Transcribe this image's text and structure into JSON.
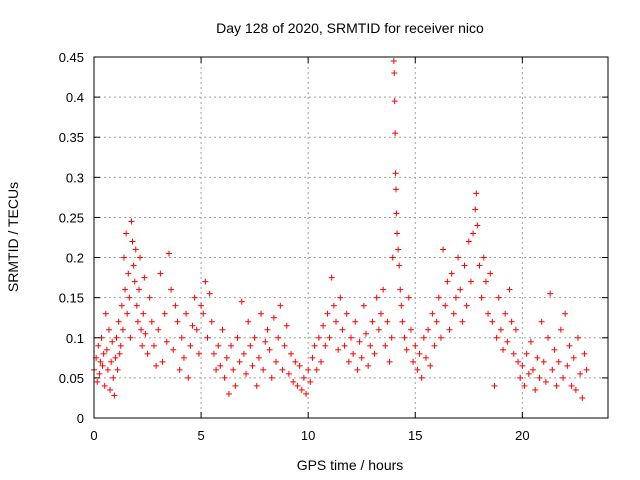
{
  "chart_data": {
    "type": "scatter",
    "title": "Day 128 of 2020, SRMTID for receiver nico",
    "xlabel": "GPS time / hours",
    "ylabel": "SRMTID / TECUs",
    "xlim": [
      0,
      24
    ],
    "ylim": [
      0,
      0.45
    ],
    "xticks": [
      0,
      5,
      10,
      15,
      20
    ],
    "xtick_labels": [
      "0",
      "5",
      "10",
      "15",
      "20"
    ],
    "yticks": [
      0,
      0.05,
      0.1,
      0.15,
      0.2,
      0.25,
      0.3,
      0.35,
      0.4,
      0.45
    ],
    "ytick_labels": [
      "0",
      "0.05",
      "0.1",
      "0.15",
      "0.2",
      "0.25",
      "0.3",
      "0.35",
      "0.4",
      "0.45"
    ],
    "grid": true,
    "marker": "plus",
    "color": "#ff0000",
    "series": [
      {
        "name": "SRMTID",
        "points": [
          [
            0.0,
            0.06
          ],
          [
            0.1,
            0.075
          ],
          [
            0.15,
            0.045
          ],
          [
            0.2,
            0.09
          ],
          [
            0.25,
            0.055
          ],
          [
            0.3,
            0.07
          ],
          [
            0.35,
            0.1
          ],
          [
            0.4,
            0.065
          ],
          [
            0.45,
            0.08
          ],
          [
            0.5,
            0.04
          ],
          [
            0.55,
            0.13
          ],
          [
            0.6,
            0.085
          ],
          [
            0.65,
            0.06
          ],
          [
            0.7,
            0.11
          ],
          [
            0.75,
            0.035
          ],
          [
            0.8,
            0.07
          ],
          [
            0.85,
            0.095
          ],
          [
            0.9,
            0.05
          ],
          [
            0.95,
            0.028
          ],
          [
            1.0,
            0.075
          ],
          [
            1.05,
            0.1
          ],
          [
            1.1,
            0.06
          ],
          [
            1.15,
            0.12
          ],
          [
            1.2,
            0.08
          ],
          [
            1.25,
            0.09
          ],
          [
            1.3,
            0.14
          ],
          [
            1.35,
            0.11
          ],
          [
            1.4,
            0.2
          ],
          [
            1.45,
            0.16
          ],
          [
            1.5,
            0.23
          ],
          [
            1.55,
            0.13
          ],
          [
            1.6,
            0.18
          ],
          [
            1.65,
            0.15
          ],
          [
            1.7,
            0.1
          ],
          [
            1.75,
            0.245
          ],
          [
            1.8,
            0.22
          ],
          [
            1.85,
            0.19
          ],
          [
            1.9,
            0.17
          ],
          [
            1.95,
            0.21
          ],
          [
            2.0,
            0.14
          ],
          [
            2.05,
            0.12
          ],
          [
            2.1,
            0.16
          ],
          [
            2.15,
            0.2
          ],
          [
            2.2,
            0.11
          ],
          [
            2.25,
            0.09
          ],
          [
            2.3,
            0.13
          ],
          [
            2.35,
            0.175
          ],
          [
            2.4,
            0.105
          ],
          [
            2.5,
            0.08
          ],
          [
            2.6,
            0.15
          ],
          [
            2.7,
            0.12
          ],
          [
            2.8,
            0.09
          ],
          [
            2.9,
            0.065
          ],
          [
            3.0,
            0.11
          ],
          [
            3.1,
            0.18
          ],
          [
            3.2,
            0.07
          ],
          [
            3.3,
            0.13
          ],
          [
            3.4,
            0.095
          ],
          [
            3.5,
            0.205
          ],
          [
            3.6,
            0.16
          ],
          [
            3.7,
            0.085
          ],
          [
            3.8,
            0.14
          ],
          [
            3.9,
            0.12
          ],
          [
            4.0,
            0.06
          ],
          [
            4.1,
            0.1
          ],
          [
            4.2,
            0.075
          ],
          [
            4.3,
            0.13
          ],
          [
            4.4,
            0.05
          ],
          [
            4.5,
            0.09
          ],
          [
            4.6,
            0.115
          ],
          [
            4.7,
            0.15
          ],
          [
            4.8,
            0.11
          ],
          [
            4.9,
            0.08
          ],
          [
            5.0,
            0.14
          ],
          [
            5.1,
            0.13
          ],
          [
            5.2,
            0.17
          ],
          [
            5.3,
            0.1
          ],
          [
            5.4,
            0.155
          ],
          [
            5.5,
            0.12
          ],
          [
            5.6,
            0.08
          ],
          [
            5.7,
            0.06
          ],
          [
            5.8,
            0.09
          ],
          [
            5.9,
            0.065
          ],
          [
            6.0,
            0.11
          ],
          [
            6.1,
            0.05
          ],
          [
            6.2,
            0.075
          ],
          [
            6.3,
            0.03
          ],
          [
            6.4,
            0.09
          ],
          [
            6.5,
            0.06
          ],
          [
            6.6,
            0.04
          ],
          [
            6.7,
            0.1
          ],
          [
            6.8,
            0.07
          ],
          [
            6.9,
            0.145
          ],
          [
            7.0,
            0.08
          ],
          [
            7.1,
            0.055
          ],
          [
            7.2,
            0.12
          ],
          [
            7.3,
            0.09
          ],
          [
            7.4,
            0.065
          ],
          [
            7.5,
            0.1
          ],
          [
            7.6,
            0.04
          ],
          [
            7.7,
            0.075
          ],
          [
            7.8,
            0.13
          ],
          [
            7.9,
            0.06
          ],
          [
            8.0,
            0.095
          ],
          [
            8.1,
            0.11
          ],
          [
            8.2,
            0.085
          ],
          [
            8.3,
            0.05
          ],
          [
            8.4,
            0.125
          ],
          [
            8.5,
            0.07
          ],
          [
            8.6,
            0.1
          ],
          [
            8.7,
            0.14
          ],
          [
            8.8,
            0.06
          ],
          [
            8.9,
            0.09
          ],
          [
            9.0,
            0.115
          ],
          [
            9.1,
            0.055
          ],
          [
            9.2,
            0.08
          ],
          [
            9.3,
            0.045
          ],
          [
            9.4,
            0.07
          ],
          [
            9.5,
            0.04
          ],
          [
            9.6,
            0.065
          ],
          [
            9.7,
            0.035
          ],
          [
            9.8,
            0.05
          ],
          [
            9.9,
            0.03
          ],
          [
            10.0,
            0.06
          ],
          [
            10.1,
            0.045
          ],
          [
            10.2,
            0.075
          ],
          [
            10.3,
            0.09
          ],
          [
            10.4,
            0.06
          ],
          [
            10.5,
            0.1
          ],
          [
            10.6,
            0.07
          ],
          [
            10.7,
            0.115
          ],
          [
            10.8,
            0.09
          ],
          [
            10.9,
            0.13
          ],
          [
            11.0,
            0.1
          ],
          [
            11.1,
            0.175
          ],
          [
            11.2,
            0.14
          ],
          [
            11.3,
            0.12
          ],
          [
            11.4,
            0.085
          ],
          [
            11.5,
            0.15
          ],
          [
            11.6,
            0.11
          ],
          [
            11.7,
            0.09
          ],
          [
            11.8,
            0.13
          ],
          [
            11.9,
            0.07
          ],
          [
            12.0,
            0.1
          ],
          [
            12.1,
            0.08
          ],
          [
            12.2,
            0.12
          ],
          [
            12.3,
            0.06
          ],
          [
            12.4,
            0.095
          ],
          [
            12.5,
            0.075
          ],
          [
            12.6,
            0.14
          ],
          [
            12.7,
            0.105
          ],
          [
            12.8,
            0.065
          ],
          [
            12.9,
            0.09
          ],
          [
            13.0,
            0.12
          ],
          [
            13.1,
            0.08
          ],
          [
            13.2,
            0.15
          ],
          [
            13.3,
            0.11
          ],
          [
            13.4,
            0.13
          ],
          [
            13.5,
            0.16
          ],
          [
            13.6,
            0.09
          ],
          [
            13.7,
            0.12
          ],
          [
            13.8,
            0.07
          ],
          [
            13.9,
            0.1
          ],
          [
            13.95,
            0.2
          ],
          [
            14.0,
            0.445
          ],
          [
            14.02,
            0.43
          ],
          [
            14.04,
            0.395
          ],
          [
            14.06,
            0.355
          ],
          [
            14.08,
            0.305
          ],
          [
            14.1,
            0.285
          ],
          [
            14.12,
            0.255
          ],
          [
            14.15,
            0.23
          ],
          [
            14.2,
            0.21
          ],
          [
            14.25,
            0.19
          ],
          [
            14.3,
            0.16
          ],
          [
            14.35,
            0.14
          ],
          [
            14.4,
            0.12
          ],
          [
            14.5,
            0.1
          ],
          [
            14.6,
            0.085
          ],
          [
            14.7,
            0.15
          ],
          [
            14.8,
            0.11
          ],
          [
            14.9,
            0.07
          ],
          [
            15.0,
            0.09
          ],
          [
            15.1,
            0.06
          ],
          [
            15.2,
            0.08
          ],
          [
            15.3,
            0.05
          ],
          [
            15.4,
            0.1
          ],
          [
            15.5,
            0.075
          ],
          [
            15.6,
            0.11
          ],
          [
            15.7,
            0.065
          ],
          [
            15.8,
            0.13
          ],
          [
            15.9,
            0.09
          ],
          [
            16.0,
            0.12
          ],
          [
            16.1,
            0.15
          ],
          [
            16.2,
            0.1
          ],
          [
            16.3,
            0.21
          ],
          [
            16.4,
            0.14
          ],
          [
            16.5,
            0.17
          ],
          [
            16.6,
            0.11
          ],
          [
            16.7,
            0.18
          ],
          [
            16.8,
            0.13
          ],
          [
            16.9,
            0.15
          ],
          [
            17.0,
            0.2
          ],
          [
            17.1,
            0.16
          ],
          [
            17.2,
            0.12
          ],
          [
            17.3,
            0.19
          ],
          [
            17.4,
            0.14
          ],
          [
            17.5,
            0.22
          ],
          [
            17.6,
            0.17
          ],
          [
            17.7,
            0.23
          ],
          [
            17.8,
            0.26
          ],
          [
            17.85,
            0.28
          ],
          [
            17.9,
            0.24
          ],
          [
            18.0,
            0.19
          ],
          [
            18.1,
            0.15
          ],
          [
            18.2,
            0.2
          ],
          [
            18.3,
            0.17
          ],
          [
            18.4,
            0.13
          ],
          [
            18.5,
            0.18
          ],
          [
            18.6,
            0.12
          ],
          [
            18.7,
            0.04
          ],
          [
            18.8,
            0.1
          ],
          [
            18.9,
            0.15
          ],
          [
            19.0,
            0.11
          ],
          [
            19.1,
            0.085
          ],
          [
            19.2,
            0.13
          ],
          [
            19.3,
            0.095
          ],
          [
            19.4,
            0.16
          ],
          [
            19.5,
            0.12
          ],
          [
            19.6,
            0.08
          ],
          [
            19.7,
            0.11
          ],
          [
            19.8,
            0.07
          ],
          [
            19.9,
            0.05
          ],
          [
            20.0,
            0.065
          ],
          [
            20.1,
            0.04
          ],
          [
            20.2,
            0.08
          ],
          [
            20.3,
            0.055
          ],
          [
            20.4,
            0.095
          ],
          [
            20.5,
            0.06
          ],
          [
            20.6,
            0.035
          ],
          [
            20.7,
            0.075
          ],
          [
            20.8,
            0.05
          ],
          [
            20.9,
            0.12
          ],
          [
            21.0,
            0.07
          ],
          [
            21.1,
            0.045
          ],
          [
            21.2,
            0.1
          ],
          [
            21.3,
            0.155
          ],
          [
            21.4,
            0.06
          ],
          [
            21.5,
            0.085
          ],
          [
            21.6,
            0.04
          ],
          [
            21.7,
            0.07
          ],
          [
            21.8,
            0.11
          ],
          [
            21.9,
            0.05
          ],
          [
            22.0,
            0.13
          ],
          [
            22.1,
            0.065
          ],
          [
            22.2,
            0.09
          ],
          [
            22.3,
            0.04
          ],
          [
            22.4,
            0.075
          ],
          [
            22.5,
            0.035
          ],
          [
            22.6,
            0.1
          ],
          [
            22.7,
            0.055
          ],
          [
            22.8,
            0.025
          ],
          [
            22.9,
            0.08
          ],
          [
            23.0,
            0.06
          ]
        ]
      }
    ]
  }
}
